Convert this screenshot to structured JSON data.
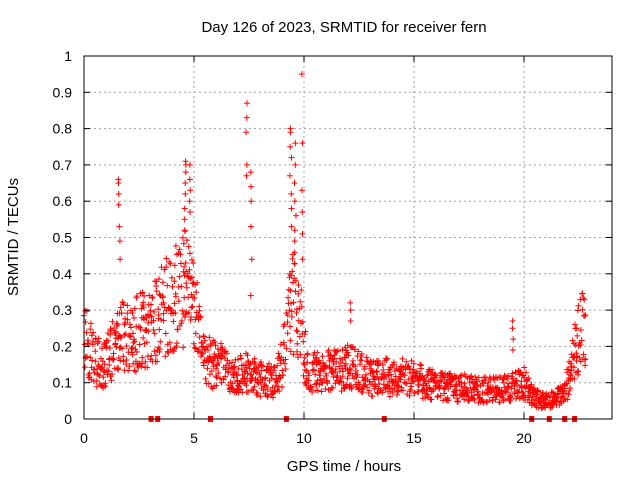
{
  "chart_data": {
    "type": "scatter",
    "title": "Day 126 of 2023, SRMTID for receiver fern",
    "xlabel": "GPS time / hours",
    "ylabel": "SRMTID / TECUs",
    "xlim": [
      0,
      24
    ],
    "ylim": [
      0,
      1
    ],
    "x_ticks": [
      "0",
      "5",
      "10",
      "15",
      "20"
    ],
    "y_ticks": [
      "0",
      "0.1",
      "0.2",
      "0.3",
      "0.4",
      "0.5",
      "0.6",
      "0.7",
      "0.8",
      "0.9",
      "1"
    ],
    "x_tick_values": [
      0,
      5,
      10,
      15,
      20
    ],
    "y_tick_values": [
      0,
      0.1,
      0.2,
      0.3,
      0.4,
      0.5,
      0.6,
      0.7,
      0.8,
      0.9,
      1
    ],
    "grid": true,
    "marker": "plus",
    "color": "#ff0000",
    "series_name": "SRMTID",
    "profile": [
      [
        0.0,
        0.24
      ],
      [
        0.2,
        0.2
      ],
      [
        0.5,
        0.17
      ],
      [
        0.8,
        0.14
      ],
      [
        1.0,
        0.15
      ],
      [
        1.3,
        0.19
      ],
      [
        1.6,
        0.22
      ],
      [
        1.9,
        0.24
      ],
      [
        2.2,
        0.21
      ],
      [
        2.6,
        0.26
      ],
      [
        3.0,
        0.24
      ],
      [
        3.4,
        0.28
      ],
      [
        3.8,
        0.31
      ],
      [
        4.2,
        0.33
      ],
      [
        4.6,
        0.36
      ],
      [
        4.9,
        0.32
      ],
      [
        5.2,
        0.25
      ],
      [
        5.5,
        0.17
      ],
      [
        5.9,
        0.15
      ],
      [
        6.3,
        0.15
      ],
      [
        6.7,
        0.11
      ],
      [
        7.1,
        0.12
      ],
      [
        7.5,
        0.13
      ],
      [
        7.9,
        0.11
      ],
      [
        8.3,
        0.11
      ],
      [
        8.7,
        0.1
      ],
      [
        9.0,
        0.16
      ],
      [
        9.3,
        0.28
      ],
      [
        9.6,
        0.33
      ],
      [
        9.9,
        0.24
      ],
      [
        10.2,
        0.12
      ],
      [
        10.5,
        0.13
      ],
      [
        10.8,
        0.12
      ],
      [
        11.2,
        0.14
      ],
      [
        11.6,
        0.13
      ],
      [
        12.0,
        0.15
      ],
      [
        12.4,
        0.13
      ],
      [
        12.8,
        0.12
      ],
      [
        13.2,
        0.11
      ],
      [
        13.6,
        0.12
      ],
      [
        14.0,
        0.11
      ],
      [
        14.5,
        0.12
      ],
      [
        15.0,
        0.11
      ],
      [
        15.5,
        0.1
      ],
      [
        16.0,
        0.09
      ],
      [
        16.5,
        0.09
      ],
      [
        17.0,
        0.08
      ],
      [
        17.5,
        0.09
      ],
      [
        18.0,
        0.08
      ],
      [
        18.5,
        0.08
      ],
      [
        19.0,
        0.08
      ],
      [
        19.5,
        0.09
      ],
      [
        20.0,
        0.1
      ],
      [
        20.4,
        0.06
      ],
      [
        20.8,
        0.05
      ],
      [
        21.2,
        0.05
      ],
      [
        21.6,
        0.06
      ],
      [
        22.0,
        0.1
      ],
      [
        22.3,
        0.19
      ],
      [
        22.6,
        0.24
      ],
      [
        22.8,
        0.24
      ]
    ],
    "spikes": [
      {
        "x": 1.6,
        "values": [
          0.66,
          0.65,
          0.62,
          0.59,
          0.53,
          0.49,
          0.44
        ]
      },
      {
        "x": 4.6,
        "values": [
          0.71,
          0.7,
          0.68,
          0.65,
          0.62,
          0.58,
          0.55,
          0.52
        ]
      },
      {
        "x": 4.8,
        "values": [
          0.7,
          0.66,
          0.63,
          0.6,
          0.57
        ]
      },
      {
        "x": 7.4,
        "values": [
          0.87,
          0.83,
          0.79,
          0.7,
          0.67
        ]
      },
      {
        "x": 7.6,
        "values": [
          0.68,
          0.64,
          0.6,
          0.53,
          0.44,
          0.34
        ]
      },
      {
        "x": 9.4,
        "values": [
          0.8,
          0.79,
          0.75,
          0.72,
          0.67,
          0.62,
          0.58,
          0.53
        ]
      },
      {
        "x": 9.6,
        "values": [
          0.76,
          0.7,
          0.65,
          0.6,
          0.56,
          0.52,
          0.49
        ]
      },
      {
        "x": 9.9,
        "values": [
          0.95,
          0.76,
          0.63,
          0.57,
          0.51,
          0.44
        ]
      },
      {
        "x": 12.1,
        "values": [
          0.32,
          0.3,
          0.27
        ]
      },
      {
        "x": 19.5,
        "values": [
          0.27,
          0.25,
          0.22,
          0.19
        ]
      }
    ],
    "gap_markers_x": [
      3.05,
      3.35,
      5.75,
      9.2,
      13.65,
      20.35,
      21.15,
      21.85,
      22.3
    ]
  }
}
